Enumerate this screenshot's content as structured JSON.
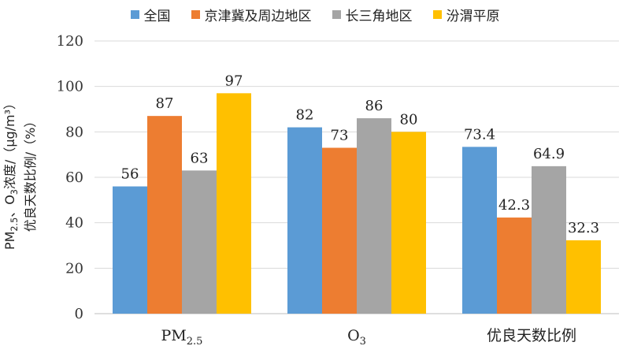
{
  "chart_data": {
    "type": "bar",
    "categories": [
      "PM2.5",
      "O3",
      "优良天数比例"
    ],
    "category_labels": [
      {
        "main": "PM",
        "sub": "2.5"
      },
      {
        "main": "O",
        "sub": "3"
      },
      {
        "main": "优良天数比例",
        "sub": ""
      }
    ],
    "series": [
      {
        "name": "全国",
        "color": "#5B9BD5",
        "values": [
          56,
          82,
          73.4
        ],
        "labels": [
          "56",
          "82",
          "73.4"
        ]
      },
      {
        "name": "京津冀及周边地区",
        "color": "#ED7D31",
        "values": [
          87,
          73,
          42.3
        ],
        "labels": [
          "87",
          "73",
          "42.3"
        ]
      },
      {
        "name": "长三角地区",
        "color": "#A5A5A5",
        "values": [
          63,
          86,
          64.9
        ],
        "labels": [
          "63",
          "86",
          "64.9"
        ]
      },
      {
        "name": "汾渭平原",
        "color": "#FFC000",
        "values": [
          97,
          80,
          32.3
        ],
        "labels": [
          "97",
          "80",
          "32.3"
        ]
      }
    ],
    "ylim": [
      0,
      120
    ],
    "yticks": [
      "0",
      "20",
      "40",
      "60",
      "80",
      "100",
      "120"
    ],
    "ylabel_line1": {
      "pm": "PM",
      "pm_sub": "2.5",
      "sep": "、O",
      "o_sub": "3",
      "rest": "浓度/（μg/m³）"
    },
    "ylabel_line2": "优良天数比例/（%）",
    "grid": true,
    "legend": "top"
  }
}
